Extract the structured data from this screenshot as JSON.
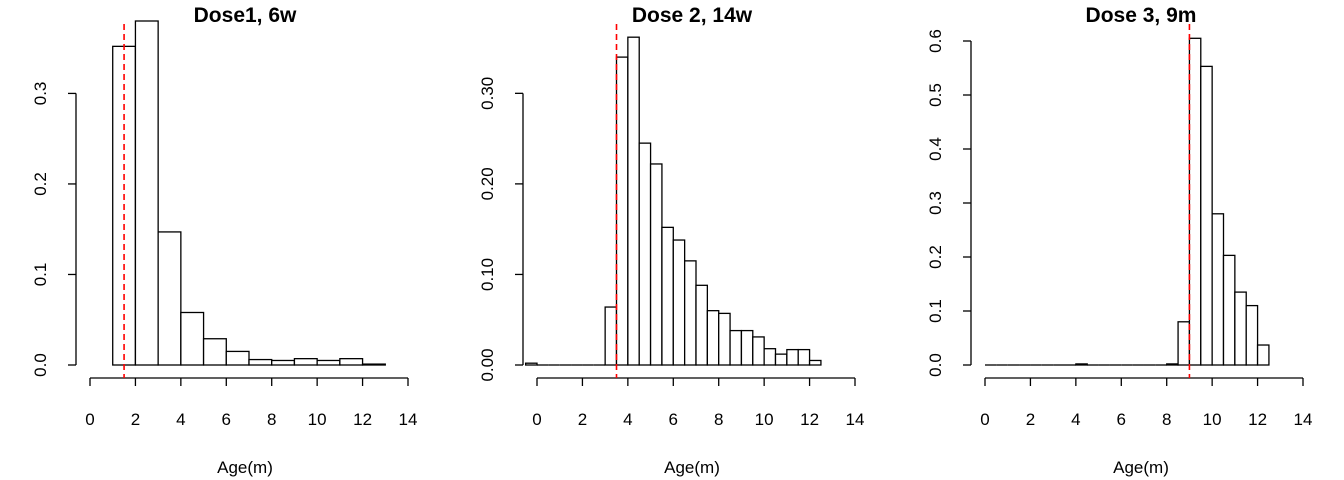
{
  "chart_data": [
    {
      "type": "bar",
      "title": "Dose1, 6w",
      "xlabel": "Age(m)",
      "ylabel": "",
      "xlim": [
        0,
        14
      ],
      "xticks": [
        0,
        2,
        4,
        6,
        8,
        10,
        12,
        14
      ],
      "yticks": [
        0.0,
        0.1,
        0.2,
        0.3
      ],
      "ytick_labels": [
        "0.0",
        "0.1",
        "0.2",
        "0.3"
      ],
      "ylim": [
        0,
        0.38
      ],
      "bins": [
        [
          1,
          2
        ],
        [
          2,
          3
        ],
        [
          3,
          4
        ],
        [
          4,
          5
        ],
        [
          5,
          6
        ],
        [
          6,
          7
        ],
        [
          7,
          8
        ],
        [
          8,
          9
        ],
        [
          9,
          10
        ],
        [
          10,
          11
        ],
        [
          11,
          12
        ],
        [
          12,
          13
        ]
      ],
      "values": [
        0.352,
        0.38,
        0.147,
        0.058,
        0.029,
        0.015,
        0.006,
        0.005,
        0.007,
        0.005,
        0.007,
        0.001
      ],
      "reference_line": {
        "x": 1.5,
        "color": "#ff0000",
        "style": "dashed"
      }
    },
    {
      "type": "bar",
      "title": "Dose 2, 14w",
      "xlabel": "Age(m)",
      "ylabel": "",
      "xlim": [
        0,
        14
      ],
      "xticks": [
        0,
        2,
        4,
        6,
        8,
        10,
        12,
        14
      ],
      "yticks": [
        0.0,
        0.1,
        0.2,
        0.3
      ],
      "ytick_labels": [
        "0.00",
        "0.10",
        "0.20",
        "0.30"
      ],
      "ylim": [
        0,
        0.36
      ],
      "bins": [
        [
          -0.5,
          0
        ],
        [
          0,
          0.5
        ],
        [
          0.5,
          1
        ],
        [
          1,
          1.5
        ],
        [
          1.5,
          2
        ],
        [
          2,
          2.5
        ],
        [
          2.5,
          3
        ],
        [
          3,
          3.5
        ],
        [
          3.5,
          4
        ],
        [
          4,
          4.5
        ],
        [
          4.5,
          5
        ],
        [
          5,
          5.5
        ],
        [
          5.5,
          6
        ],
        [
          6,
          6.5
        ],
        [
          6.5,
          7
        ],
        [
          7,
          7.5
        ],
        [
          7.5,
          8
        ],
        [
          8,
          8.5
        ],
        [
          8.5,
          9
        ],
        [
          9,
          9.5
        ],
        [
          9.5,
          10
        ],
        [
          10,
          10.5
        ],
        [
          10.5,
          11
        ],
        [
          11,
          11.5
        ],
        [
          11.5,
          12
        ],
        [
          12,
          12.5
        ]
      ],
      "values": [
        0.002,
        0,
        0,
        0,
        0,
        0,
        0,
        0.064,
        0.34,
        0.362,
        0.245,
        0.222,
        0.152,
        0.138,
        0.115,
        0.088,
        0.06,
        0.057,
        0.038,
        0.038,
        0.031,
        0.018,
        0.012,
        0.017,
        0.017,
        0.005
      ],
      "reference_line": {
        "x": 3.5,
        "color": "#ff0000",
        "style": "dashed"
      }
    },
    {
      "type": "bar",
      "title": "Dose 3, 9m",
      "xlabel": "Age(m)",
      "ylabel": "",
      "xlim": [
        0,
        14
      ],
      "xticks": [
        0,
        2,
        4,
        6,
        8,
        10,
        12,
        14
      ],
      "yticks": [
        0.0,
        0.1,
        0.2,
        0.3,
        0.4,
        0.5,
        0.6
      ],
      "ytick_labels": [
        "0.0",
        "0.1",
        "0.2",
        "0.3",
        "0.4",
        "0.5",
        "0.6"
      ],
      "ylim": [
        0,
        0.6
      ],
      "bins": [
        [
          0,
          0.5
        ],
        [
          0.5,
          1
        ],
        [
          1,
          1.5
        ],
        [
          1.5,
          2
        ],
        [
          2,
          2.5
        ],
        [
          2.5,
          3
        ],
        [
          3,
          3.5
        ],
        [
          3.5,
          4
        ],
        [
          4,
          4.5
        ],
        [
          4.5,
          5
        ],
        [
          5,
          5.5
        ],
        [
          5.5,
          6
        ],
        [
          6,
          6.5
        ],
        [
          6.5,
          7
        ],
        [
          7,
          7.5
        ],
        [
          7.5,
          8
        ],
        [
          8,
          8.5
        ],
        [
          8.5,
          9
        ],
        [
          9,
          9.5
        ],
        [
          9.5,
          10
        ],
        [
          10,
          10.5
        ],
        [
          10.5,
          11
        ],
        [
          11,
          11.5
        ],
        [
          11.5,
          12
        ],
        [
          12,
          12.5
        ]
      ],
      "values": [
        0,
        0,
        0,
        0,
        0,
        0,
        0,
        0,
        0.002,
        0,
        0,
        0,
        0,
        0,
        0,
        0,
        0.002,
        0.08,
        0.605,
        0.553,
        0.28,
        0.203,
        0.135,
        0.11,
        0.037
      ],
      "reference_line": {
        "x": 9,
        "color": "#ff0000",
        "style": "dashed"
      }
    }
  ]
}
